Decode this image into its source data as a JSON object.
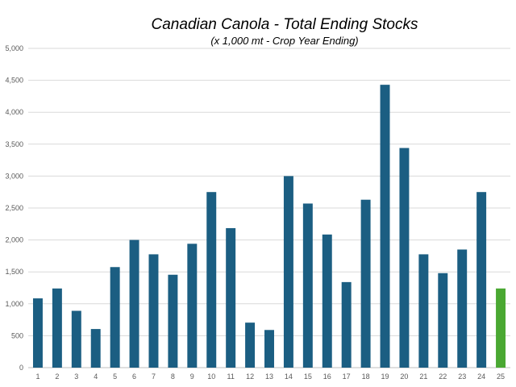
{
  "chart_data": {
    "type": "bar",
    "title": "Canadian Canola - Total Ending Stocks",
    "subtitle": "(x 1,000 mt - Crop Year Ending)",
    "xlabel": "",
    "ylabel": "",
    "categories": [
      "1",
      "2",
      "3",
      "4",
      "5",
      "6",
      "7",
      "8",
      "9",
      "10",
      "11",
      "12",
      "13",
      "14",
      "15",
      "16",
      "17",
      "18",
      "19",
      "20",
      "21",
      "22",
      "23",
      "24",
      "25"
    ],
    "values": [
      1085,
      1240,
      890,
      605,
      1575,
      2000,
      1775,
      1455,
      1940,
      2750,
      2185,
      705,
      590,
      3000,
      2570,
      2085,
      1340,
      2630,
      4430,
      3440,
      1775,
      1480,
      1850,
      2750,
      1240
    ],
    "ylim": [
      0,
      5000
    ],
    "yticks": [
      0,
      500,
      1000,
      1500,
      2000,
      2500,
      3000,
      3500,
      4000,
      4500,
      5000
    ],
    "ytick_labels": [
      "0",
      "500",
      "1,000",
      "1,500",
      "2,000",
      "2,500",
      "3,000",
      "3,500",
      "4,000",
      "4,500",
      "5,000"
    ],
    "grid": true,
    "legend": "none",
    "colors": {
      "bar": "#1b5e82",
      "highlight": "#4aa832",
      "grid": "#d9d9d9"
    },
    "highlight_category": "25"
  }
}
